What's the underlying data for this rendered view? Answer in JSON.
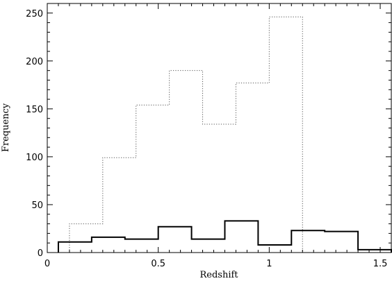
{
  "chart_data": {
    "type": "histogram",
    "title": "",
    "xlabel": "Redshift",
    "ylabel": "Frequency",
    "xlim": [
      0,
      1.55
    ],
    "ylim": [
      0,
      260
    ],
    "x_ticks": [
      0,
      0.5,
      1,
      1.5
    ],
    "x_tick_labels": [
      "0",
      "0.5",
      "1",
      "1.5"
    ],
    "y_ticks": [
      0,
      50,
      100,
      150,
      200,
      250
    ],
    "y_tick_labels": [
      "0",
      "50",
      "100",
      "150",
      "200",
      "250"
    ],
    "grid": false,
    "legend": "none",
    "series": [
      {
        "style": "dotted",
        "color": "#555555",
        "bin_edges": [
          0.1,
          0.25,
          0.4,
          0.55,
          0.7,
          0.85,
          1.0,
          1.15
        ],
        "counts": [
          30,
          99,
          154,
          190,
          134,
          177,
          246
        ]
      },
      {
        "style": "solid",
        "color": "#000000",
        "bin_edges": [
          0.05,
          0.2,
          0.35,
          0.5,
          0.65,
          0.8,
          0.95,
          1.1,
          1.25,
          1.4,
          1.55
        ],
        "counts": [
          11,
          16,
          14,
          27,
          14,
          33,
          8,
          23,
          22,
          3
        ]
      }
    ]
  }
}
